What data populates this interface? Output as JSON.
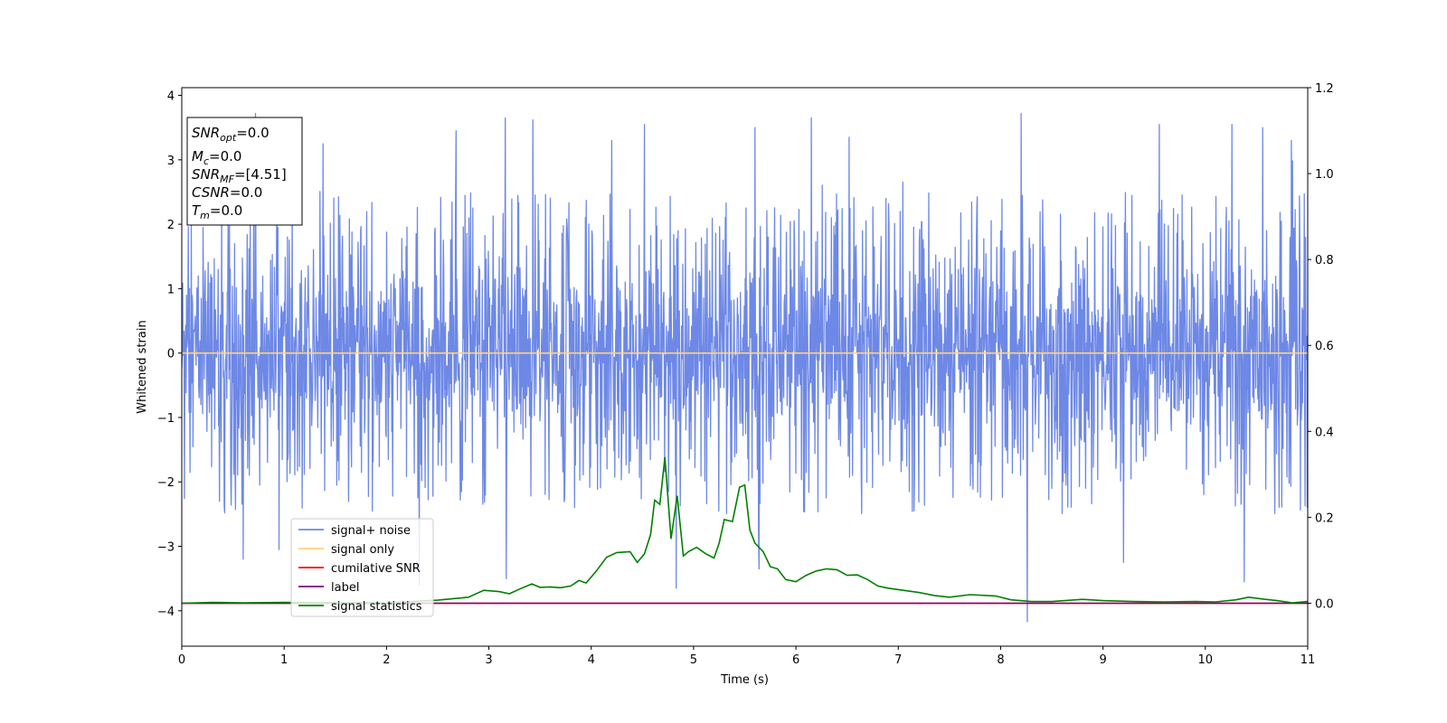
{
  "chart_data": {
    "type": "line",
    "xlabel": "Time (s)",
    "ylabel": "Whitened strain",
    "xlim": [
      0,
      11
    ],
    "ylim": [
      -4.55,
      4.12
    ],
    "y2lim": [
      -0.1,
      1.2
    ],
    "x_ticks": [
      "0",
      "1",
      "2",
      "3",
      "4",
      "5",
      "6",
      "7",
      "8",
      "9",
      "10",
      "11"
    ],
    "y_ticks": [
      {
        "value": 4,
        "label": "4"
      },
      {
        "value": 3,
        "label": "3"
      },
      {
        "value": 2,
        "label": "2"
      },
      {
        "value": 1,
        "label": "1"
      },
      {
        "value": 0,
        "label": "0"
      },
      {
        "value": -1,
        "label": "−1"
      },
      {
        "value": -2,
        "label": "−2"
      },
      {
        "value": -3,
        "label": "−3"
      },
      {
        "value": -4,
        "label": "−4"
      }
    ],
    "y2_ticks": [
      {
        "value": 1.2,
        "label": "1.2"
      },
      {
        "value": 1.0,
        "label": "1.0"
      },
      {
        "value": 0.8,
        "label": "0.8"
      },
      {
        "value": 0.6,
        "label": "0.6"
      },
      {
        "value": 0.4,
        "label": "0.4"
      },
      {
        "value": 0.2,
        "label": "0.2"
      },
      {
        "value": 0.0,
        "label": "0.0"
      }
    ],
    "info_box": [
      {
        "sym": "SNR",
        "sub": "opt",
        "rest": "=0.0"
      },
      {
        "sym": "M",
        "sub": "c",
        "rest": "=0.0"
      },
      {
        "sym": "SNR",
        "sub": "MF",
        "rest": "=[4.51]"
      },
      {
        "sym": "CSNR",
        "sub": "",
        "rest": "=0.0"
      },
      {
        "sym": "T",
        "sub": "m",
        "rest": "=0.0"
      }
    ],
    "legend": {
      "placement": "lower-left",
      "entries": [
        {
          "label": "signal+ noise",
          "color": "#6d88e6"
        },
        {
          "label": "signal only",
          "color": "#ffd27f"
        },
        {
          "label": "cumilative SNR",
          "color": "#ff0000"
        },
        {
          "label": "label",
          "color": "#800080"
        },
        {
          "label": "signal statistics",
          "color": "#008000"
        }
      ]
    },
    "series": [
      {
        "name": "signal+ noise",
        "color": "#6d88e6",
        "axis": "left",
        "kind": "noise",
        "x_range": [
          0,
          11
        ],
        "envelope": [
          -2.2,
          2.4
        ],
        "peaks": [
          {
            "x": 0.72,
            "y": 3.72
          },
          {
            "x": 1.38,
            "y": 3.25
          },
          {
            "x": 2.68,
            "y": 3.45
          },
          {
            "x": 3.16,
            "y": 3.65
          },
          {
            "x": 3.43,
            "y": 3.62
          },
          {
            "x": 4.2,
            "y": 3.3
          },
          {
            "x": 4.52,
            "y": 3.55
          },
          {
            "x": 5.6,
            "y": 3.5
          },
          {
            "x": 6.15,
            "y": 3.65
          },
          {
            "x": 6.52,
            "y": 3.35
          },
          {
            "x": 8.2,
            "y": 3.72
          },
          {
            "x": 9.55,
            "y": 3.55
          },
          {
            "x": 10.26,
            "y": 3.55
          },
          {
            "x": 10.56,
            "y": 3.5
          },
          {
            "x": 10.84,
            "y": 3.3
          },
          {
            "x": 0.6,
            "y": -3.2
          },
          {
            "x": 2.32,
            "y": -3.6
          },
          {
            "x": 3.17,
            "y": -3.5
          },
          {
            "x": 4.83,
            "y": -3.65
          },
          {
            "x": 5.64,
            "y": -3.35
          },
          {
            "x": 8.26,
            "y": -4.17
          },
          {
            "x": 10.38,
            "y": -3.55
          },
          {
            "x": 9.2,
            "y": -3.25
          },
          {
            "x": 0.95,
            "y": -3.05
          }
        ]
      },
      {
        "name": "signal only",
        "color": "#ffd27f",
        "axis": "left",
        "x": [
          0,
          11
        ],
        "y": [
          0,
          0
        ]
      },
      {
        "name": "cumilative SNR",
        "color": "#ff0000",
        "axis": "right",
        "x": [
          0,
          11
        ],
        "y": [
          0,
          0
        ]
      },
      {
        "name": "label",
        "color": "#800080",
        "axis": "right",
        "x": [
          0,
          11
        ],
        "y": [
          0,
          0
        ]
      },
      {
        "name": "signal statistics",
        "color": "#008000",
        "axis": "right",
        "x": [
          0,
          0.3,
          0.6,
          1.0,
          1.5,
          2.0,
          2.5,
          2.8,
          2.95,
          3.1,
          3.2,
          3.3,
          3.42,
          3.5,
          3.6,
          3.7,
          3.8,
          3.88,
          3.95,
          4.05,
          4.15,
          4.25,
          4.38,
          4.45,
          4.52,
          4.58,
          4.62,
          4.67,
          4.72,
          4.78,
          4.84,
          4.9,
          4.95,
          5.03,
          5.12,
          5.2,
          5.25,
          5.3,
          5.38,
          5.45,
          5.5,
          5.55,
          5.6,
          5.68,
          5.75,
          5.82,
          5.9,
          6.0,
          6.1,
          6.2,
          6.3,
          6.4,
          6.5,
          6.6,
          6.7,
          6.8,
          6.9,
          7.05,
          7.2,
          7.35,
          7.5,
          7.7,
          7.95,
          8.1,
          8.3,
          8.5,
          8.8,
          9.0,
          9.3,
          9.6,
          9.9,
          10.1,
          10.3,
          10.42,
          10.55,
          10.7,
          10.85,
          11.0
        ],
        "y": [
          0.0,
          0.002,
          0.001,
          0.002,
          0.001,
          0.001,
          0.007,
          0.014,
          0.03,
          0.027,
          0.022,
          0.033,
          0.045,
          0.037,
          0.038,
          0.036,
          0.04,
          0.053,
          0.047,
          0.075,
          0.107,
          0.118,
          0.12,
          0.095,
          0.115,
          0.16,
          0.24,
          0.23,
          0.34,
          0.15,
          0.25,
          0.11,
          0.12,
          0.13,
          0.115,
          0.105,
          0.14,
          0.195,
          0.19,
          0.27,
          0.275,
          0.17,
          0.14,
          0.12,
          0.085,
          0.08,
          0.055,
          0.05,
          0.065,
          0.075,
          0.08,
          0.078,
          0.065,
          0.066,
          0.055,
          0.04,
          0.035,
          0.03,
          0.025,
          0.018,
          0.014,
          0.02,
          0.017,
          0.008,
          0.004,
          0.004,
          0.009,
          0.006,
          0.004,
          0.003,
          0.004,
          0.003,
          0.008,
          0.014,
          0.01,
          0.006,
          0.001,
          0.004
        ]
      }
    ]
  }
}
